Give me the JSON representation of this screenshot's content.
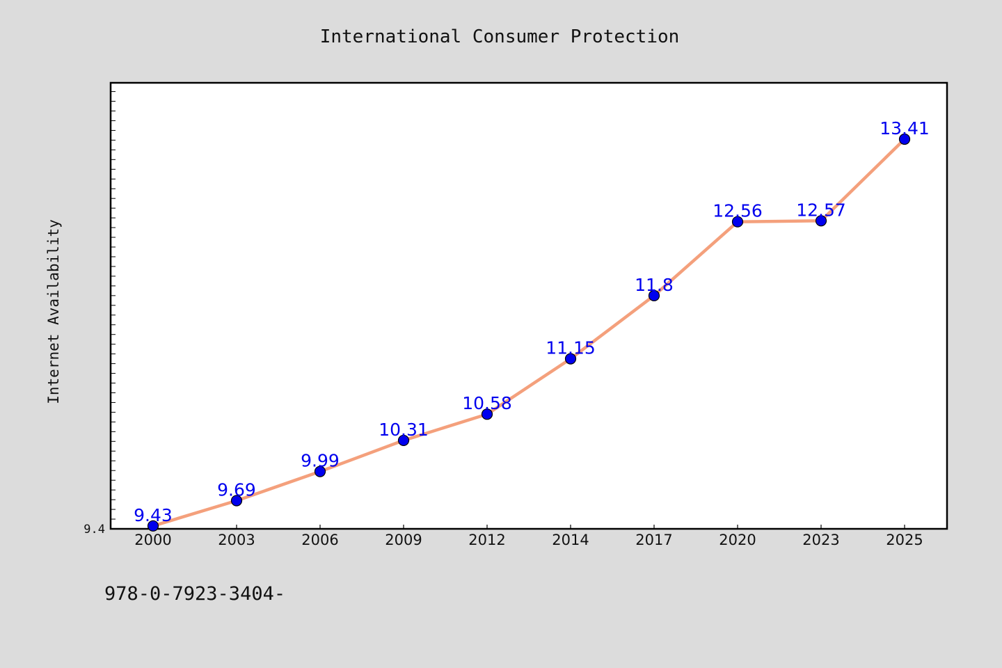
{
  "chart_data": {
    "type": "line",
    "title": "International Consumer Protection",
    "xlabel": "",
    "ylabel": "Internet Availability",
    "categories": [
      "2000",
      "2003",
      "2006",
      "2009",
      "2012",
      "2014",
      "2017",
      "2020",
      "2023",
      "2025"
    ],
    "series": [
      {
        "values": [
          9.43,
          9.69,
          9.99,
          10.31,
          10.58,
          11.15,
          11.8,
          12.56,
          12.57,
          13.41
        ],
        "labels": [
          "9.43",
          "9.69",
          "9.99",
          "10.31",
          "10.58",
          "11.15",
          "11.8",
          "12.56",
          "12.57",
          "13.41"
        ],
        "line_color": "#f4a07c",
        "marker_color": "#0000ee"
      }
    ],
    "ylim": [
      9.4,
      13.99
    ],
    "yticks_labeled": [
      "9.4"
    ],
    "grid": false,
    "legend": "none",
    "label_color": "#0000ee"
  },
  "footer": {
    "text": "978-0-7923-3404-"
  },
  "colors": {
    "background": "#dcdcdc",
    "plot_background": "#ffffff"
  }
}
